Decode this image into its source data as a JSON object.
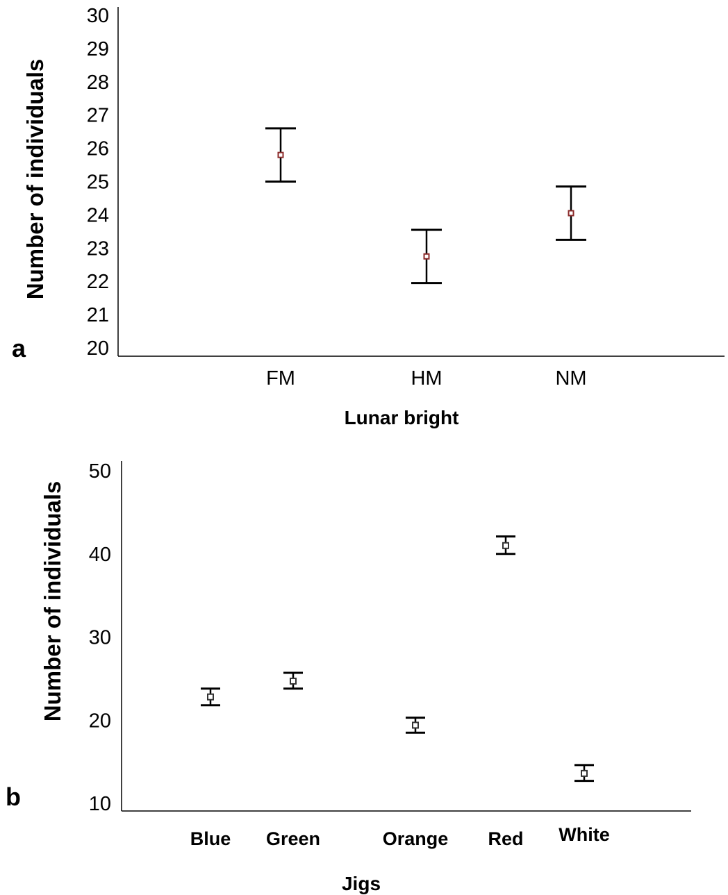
{
  "chart_data": [
    {
      "type": "scatter",
      "panel_label": "a",
      "categories": [
        "FM",
        "HM",
        "NM"
      ],
      "series": [
        {
          "values": [
            25.8,
            22.75,
            24.05
          ],
          "err_low": [
            25.0,
            21.95,
            23.25
          ],
          "err_high": [
            26.6,
            23.55,
            24.85
          ]
        }
      ],
      "y_ticks": [
        "20",
        "21",
        "22",
        "23",
        "24",
        "25",
        "26",
        "27",
        "28",
        "29",
        "30"
      ],
      "ylim": [
        20,
        30
      ],
      "xlabel": "Lunar bright",
      "ylabel": "Number of individuals",
      "grid": false,
      "marker_color": "#8b2a2a"
    },
    {
      "type": "scatter",
      "panel_label": "b",
      "categories": [
        "Blue",
        "Green",
        "Orange",
        "Red",
        "White"
      ],
      "series": [
        {
          "values": [
            22.8,
            24.7,
            19.4,
            41.0,
            13.6
          ],
          "err_low": [
            21.8,
            23.8,
            18.5,
            40.0,
            12.7
          ],
          "err_high": [
            23.8,
            25.7,
            20.3,
            42.1,
            14.6
          ]
        }
      ],
      "y_ticks": [
        "10",
        "20",
        "30",
        "40",
        "50"
      ],
      "ylim": [
        10,
        50
      ],
      "xlabel": "Jigs",
      "ylabel": "Number of individuals",
      "grid": false,
      "marker_color": "#333333"
    }
  ]
}
